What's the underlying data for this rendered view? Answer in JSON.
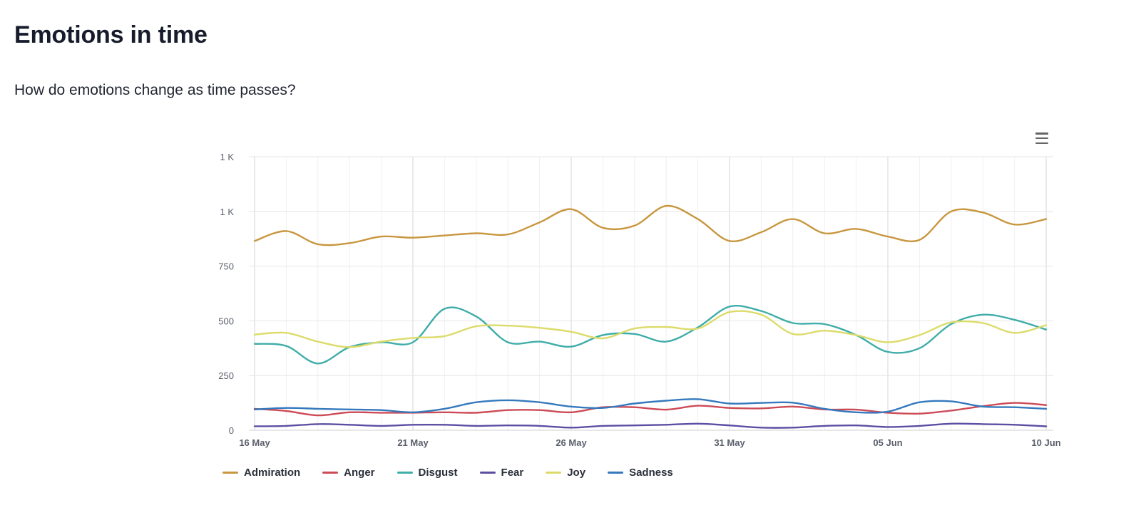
{
  "header": {
    "title": "Emotions in time",
    "subtitle": "How do emotions change as time passes?"
  },
  "toolbar": {
    "menu_icon": "hamburger-menu-icon"
  },
  "chart_data": {
    "type": "line",
    "title": "",
    "xlabel": "",
    "ylabel": "",
    "x_start": "16 May",
    "x_end": "10 Jun",
    "x_tick_labels": [
      "16 May",
      "21 May",
      "26 May",
      "31 May",
      "05 Jun",
      "10 Jun"
    ],
    "x": [
      "16 May",
      "17 May",
      "18 May",
      "19 May",
      "20 May",
      "21 May",
      "22 May",
      "23 May",
      "24 May",
      "25 May",
      "26 May",
      "27 May",
      "28 May",
      "29 May",
      "30 May",
      "31 May",
      "01 Jun",
      "02 Jun",
      "03 Jun",
      "04 Jun",
      "05 Jun",
      "06 Jun",
      "07 Jun",
      "08 Jun",
      "09 Jun",
      "10 Jun"
    ],
    "ylim": [
      0,
      1250
    ],
    "y_ticks": [
      0,
      250,
      500,
      750,
      1000,
      1250
    ],
    "y_tick_labels": [
      "0",
      "250",
      "500",
      "750",
      "1 K",
      "1 K"
    ],
    "grid": true,
    "legend_position": "bottom",
    "series": [
      {
        "name": "Admiration",
        "color": "#c8963e",
        "values": [
          865,
          910,
          850,
          855,
          885,
          880,
          890,
          900,
          895,
          950,
          1010,
          925,
          935,
          1025,
          965,
          865,
          905,
          965,
          900,
          920,
          885,
          870,
          1000,
          995,
          940,
          965
        ]
      },
      {
        "name": "Anger",
        "color": "#cc4b57",
        "values": [
          98,
          88,
          68,
          82,
          80,
          80,
          82,
          80,
          92,
          92,
          82,
          105,
          105,
          94,
          112,
          102,
          100,
          108,
          95,
          94,
          80,
          76,
          90,
          110,
          125,
          115
        ]
      },
      {
        "name": "Disgust",
        "color": "#3fada8",
        "values": [
          395,
          385,
          305,
          380,
          402,
          402,
          555,
          520,
          402,
          405,
          382,
          435,
          440,
          405,
          470,
          565,
          545,
          490,
          485,
          435,
          358,
          375,
          485,
          528,
          505,
          460
        ]
      },
      {
        "name": "Fear",
        "color": "#5b4ea3",
        "values": [
          18,
          20,
          28,
          25,
          20,
          25,
          25,
          20,
          22,
          20,
          12,
          20,
          22,
          25,
          30,
          22,
          12,
          12,
          20,
          22,
          15,
          20,
          30,
          28,
          25,
          18
        ]
      },
      {
        "name": "Joy",
        "color": "#dcdb6a",
        "values": [
          437,
          445,
          405,
          380,
          405,
          422,
          430,
          475,
          478,
          468,
          450,
          420,
          465,
          472,
          465,
          540,
          528,
          440,
          455,
          435,
          402,
          435,
          493,
          490,
          445,
          480
        ]
      },
      {
        "name": "Sadness",
        "color": "#3479bd",
        "values": [
          95,
          102,
          98,
          95,
          92,
          82,
          98,
          128,
          137,
          128,
          108,
          102,
          122,
          135,
          142,
          122,
          125,
          126,
          98,
          82,
          85,
          128,
          132,
          108,
          105,
          98
        ]
      }
    ]
  }
}
